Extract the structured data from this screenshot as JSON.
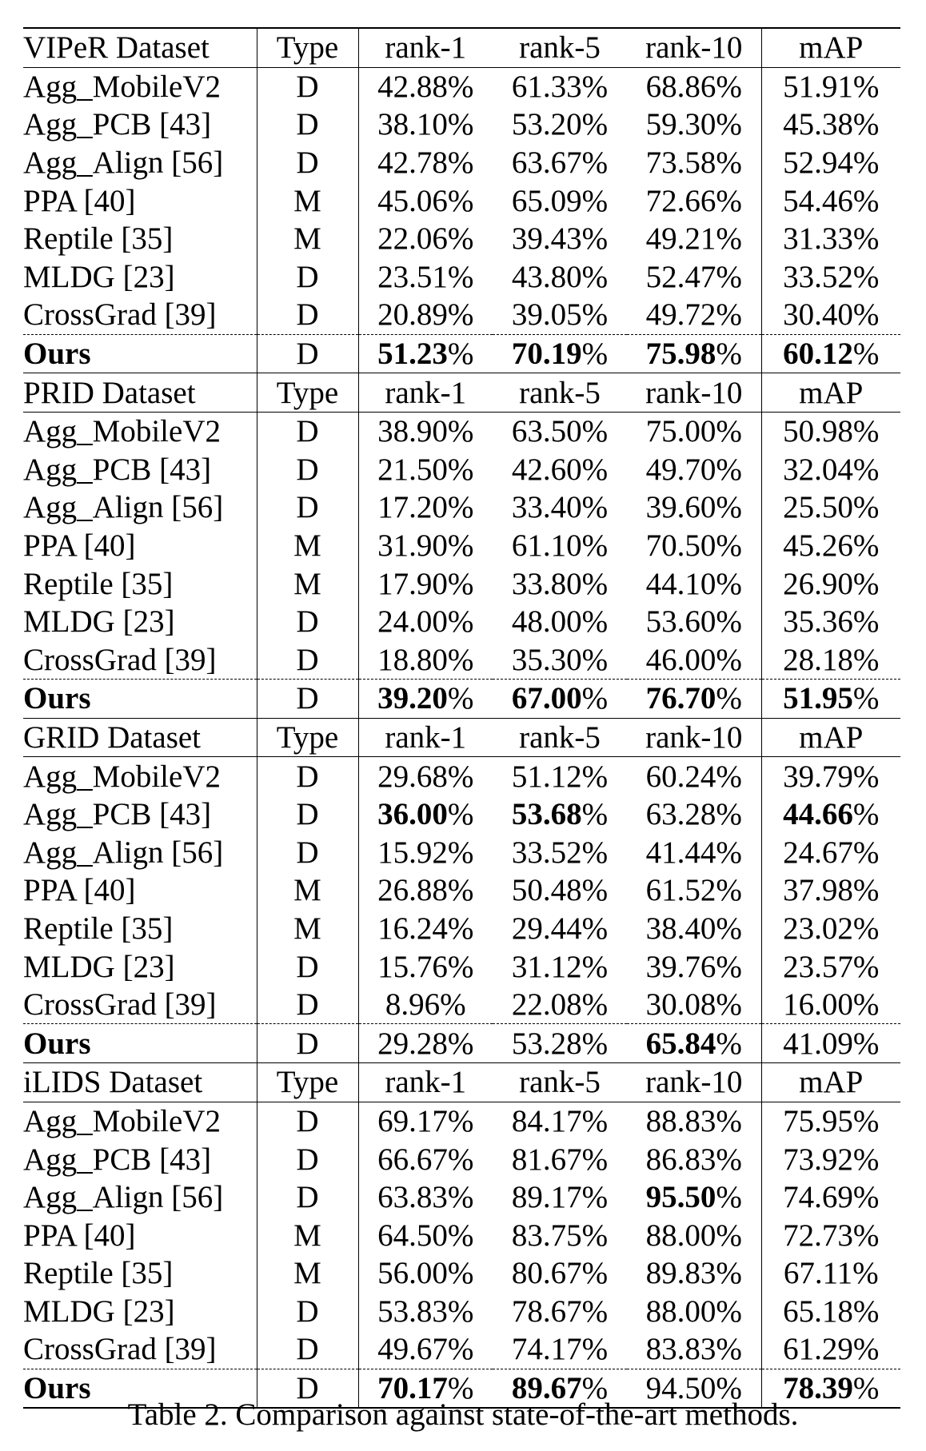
{
  "tables": [
    {
      "header": [
        "VIPeR Dataset",
        "Type",
        "rank-1",
        "rank-5",
        "rank-10",
        "mAP"
      ],
      "rows": [
        {
          "method": "Agg_MobileV2",
          "type": "D",
          "r1": "42.88",
          "r5": "61.33",
          "r10": "68.86",
          "map": "51.91",
          "bold": []
        },
        {
          "method": "Agg_PCB [43]",
          "type": "D",
          "r1": "38.10",
          "r5": "53.20",
          "r10": "59.30",
          "map": "45.38",
          "bold": []
        },
        {
          "method": "Agg_Align [56]",
          "type": "D",
          "r1": "42.78",
          "r5": "63.67",
          "r10": "73.58",
          "map": "52.94",
          "bold": []
        },
        {
          "method": "PPA [40]",
          "type": "M",
          "r1": "45.06",
          "r5": "65.09",
          "r10": "72.66",
          "map": "54.46",
          "bold": []
        },
        {
          "method": "Reptile [35]",
          "type": "M",
          "r1": "22.06",
          "r5": "39.43",
          "r10": "49.21",
          "map": "31.33",
          "bold": []
        },
        {
          "method": "MLDG [23]",
          "type": "D",
          "r1": "23.51",
          "r5": "43.80",
          "r10": "52.47",
          "map": "33.52",
          "bold": []
        },
        {
          "method": "CrossGrad [39]",
          "type": "D",
          "r1": "20.89",
          "r5": "39.05",
          "r10": "49.72",
          "map": "30.40",
          "bold": []
        },
        {
          "method": "Ours",
          "type": "D",
          "r1": "51.23",
          "r5": "70.19",
          "r10": "75.98",
          "map": "60.12",
          "bold": [
            "r1",
            "r5",
            "r10",
            "map"
          ],
          "ours": true
        }
      ]
    },
    {
      "header": [
        "PRID Dataset",
        "Type",
        "rank-1",
        "rank-5",
        "rank-10",
        "mAP"
      ],
      "rows": [
        {
          "method": "Agg_MobileV2",
          "type": "D",
          "r1": "38.90",
          "r5": "63.50",
          "r10": "75.00",
          "map": "50.98",
          "bold": []
        },
        {
          "method": "Agg_PCB [43]",
          "type": "D",
          "r1": "21.50",
          "r5": "42.60",
          "r10": "49.70",
          "map": "32.04",
          "bold": []
        },
        {
          "method": "Agg_Align [56]",
          "type": "D",
          "r1": "17.20",
          "r5": "33.40",
          "r10": "39.60",
          "map": "25.50",
          "bold": []
        },
        {
          "method": "PPA [40]",
          "type": "M",
          "r1": "31.90",
          "r5": "61.10",
          "r10": "70.50",
          "map": "45.26",
          "bold": []
        },
        {
          "method": "Reptile [35]",
          "type": "M",
          "r1": "17.90",
          "r5": "33.80",
          "r10": "44.10",
          "map": "26.90",
          "bold": []
        },
        {
          "method": "MLDG [23]",
          "type": "D",
          "r1": "24.00",
          "r5": "48.00",
          "r10": "53.60",
          "map": "35.36",
          "bold": []
        },
        {
          "method": "CrossGrad [39]",
          "type": "D",
          "r1": "18.80",
          "r5": "35.30",
          "r10": "46.00",
          "map": "28.18",
          "bold": []
        },
        {
          "method": "Ours",
          "type": "D",
          "r1": "39.20",
          "r5": "67.00",
          "r10": "76.70",
          "map": "51.95",
          "bold": [
            "r1",
            "r5",
            "r10",
            "map"
          ],
          "ours": true
        }
      ]
    },
    {
      "header": [
        "GRID Dataset",
        "Type",
        "rank-1",
        "rank-5",
        "rank-10",
        "mAP"
      ],
      "rows": [
        {
          "method": "Agg_MobileV2",
          "type": "D",
          "r1": "29.68",
          "r5": "51.12",
          "r10": "60.24",
          "map": "39.79",
          "bold": []
        },
        {
          "method": "Agg_PCB [43]",
          "type": "D",
          "r1": "36.00",
          "r5": "53.68",
          "r10": "63.28",
          "map": "44.66",
          "bold": [
            "r1",
            "r5",
            "map"
          ]
        },
        {
          "method": "Agg_Align [56]",
          "type": "D",
          "r1": "15.92",
          "r5": "33.52",
          "r10": "41.44",
          "map": "24.67",
          "bold": []
        },
        {
          "method": "PPA [40]",
          "type": "M",
          "r1": "26.88",
          "r5": "50.48",
          "r10": "61.52",
          "map": "37.98",
          "bold": []
        },
        {
          "method": "Reptile [35]",
          "type": "M",
          "r1": "16.24",
          "r5": "29.44",
          "r10": "38.40",
          "map": "23.02",
          "bold": []
        },
        {
          "method": "MLDG [23]",
          "type": "D",
          "r1": "15.76",
          "r5": "31.12",
          "r10": "39.76",
          "map": "23.57",
          "bold": []
        },
        {
          "method": "CrossGrad [39]",
          "type": "D",
          "r1": "8.96",
          "r5": "22.08",
          "r10": "30.08",
          "map": "16.00",
          "bold": []
        },
        {
          "method": "Ours",
          "type": "D",
          "r1": "29.28",
          "r5": "53.28",
          "r10": "65.84",
          "map": "41.09",
          "bold": [
            "r10"
          ],
          "ours": true
        }
      ]
    },
    {
      "header": [
        "iLIDS Dataset",
        "Type",
        "rank-1",
        "rank-5",
        "rank-10",
        "mAP"
      ],
      "rows": [
        {
          "method": "Agg_MobileV2",
          "type": "D",
          "r1": "69.17",
          "r5": "84.17",
          "r10": "88.83",
          "map": "75.95",
          "bold": []
        },
        {
          "method": "Agg_PCB [43]",
          "type": "D",
          "r1": "66.67",
          "r5": "81.67",
          "r10": "86.83",
          "map": "73.92",
          "bold": []
        },
        {
          "method": "Agg_Align [56]",
          "type": "D",
          "r1": "63.83",
          "r5": "89.17",
          "r10": "95.50",
          "map": "74.69",
          "bold": [
            "r10"
          ]
        },
        {
          "method": "PPA [40]",
          "type": "M",
          "r1": "64.50",
          "r5": "83.75",
          "r10": "88.00",
          "map": "72.73",
          "bold": []
        },
        {
          "method": "Reptile [35]",
          "type": "M",
          "r1": "56.00",
          "r5": "80.67",
          "r10": "89.83",
          "map": "67.11",
          "bold": []
        },
        {
          "method": "MLDG [23]",
          "type": "D",
          "r1": "53.83",
          "r5": "78.67",
          "r10": "88.00",
          "map": "65.18",
          "bold": []
        },
        {
          "method": "CrossGrad [39]",
          "type": "D",
          "r1": "49.67",
          "r5": "74.17",
          "r10": "83.83",
          "map": "61.29",
          "bold": []
        },
        {
          "method": "Ours",
          "type": "D",
          "r1": "70.17",
          "r5": "89.67",
          "r10": "94.50",
          "map": "78.39",
          "bold": [
            "r1",
            "r5",
            "map"
          ],
          "ours": true
        }
      ]
    }
  ],
  "percent_sign": "%",
  "caption": "Table 2. Comparison against state-of-the-art methods."
}
